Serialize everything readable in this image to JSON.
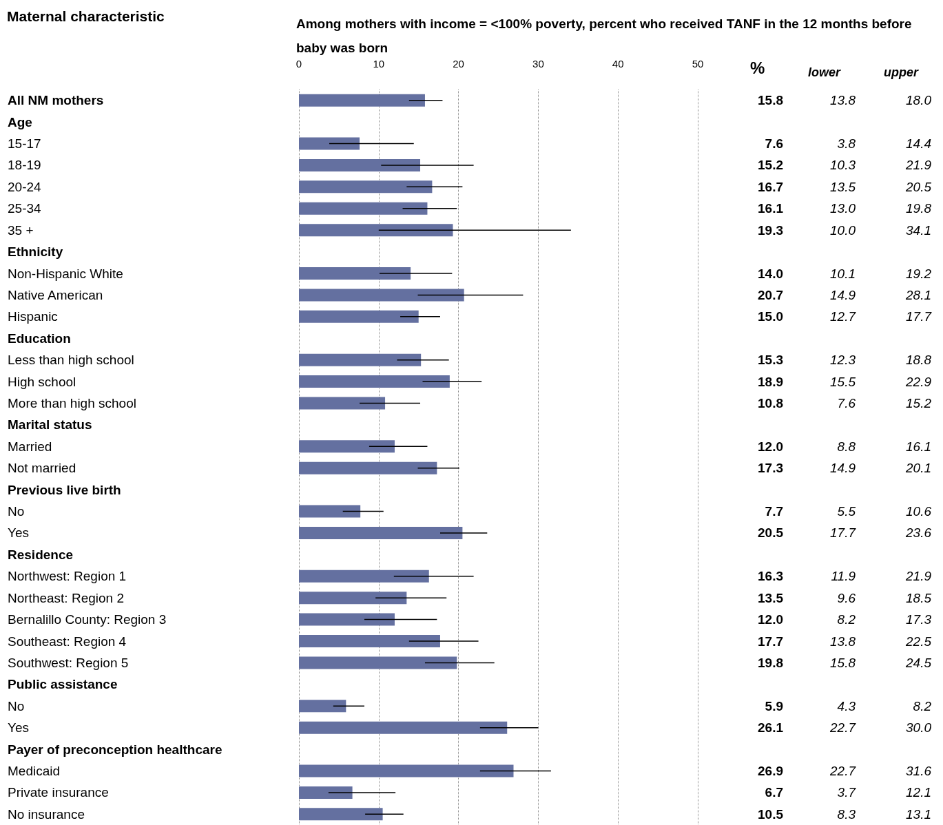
{
  "chart_data": {
    "type": "bar",
    "orientation": "horizontal",
    "title": "Among mothers with income = <100% poverty, percent who received TANF in the 12 months before baby was born",
    "annotations": [
      "Maternal characteristic",
      "%",
      "lower",
      "upper",
      "13.8",
      "18.0",
      "3.8",
      "14.4",
      "10.3",
      "21.9",
      "13.5",
      "20.5",
      "13.0",
      "19.8",
      "10.0",
      "34.1",
      "10.1",
      "19.2",
      "14.9",
      "28.1",
      "12.7",
      "17.7",
      "12.3",
      "18.8",
      "15.5",
      "22.9",
      "7.6",
      "15.2",
      "8.8",
      "16.1",
      "14.9",
      "20.1",
      "5.5",
      "10.6",
      "17.7",
      "23.6",
      "11.9",
      "21.9",
      "9.6",
      "18.5",
      "8.2",
      "17.3",
      "13.8",
      "22.5",
      "15.8",
      "24.5",
      "4.3",
      "8.2",
      "22.7",
      "30.0",
      "22.7",
      "31.6",
      "3.7",
      "12.1",
      "8.3",
      "13.1"
    ],
    "categories": [
      "All NM mothers",
      "Age",
      "15-17",
      "18-19",
      "20-24",
      "25-34",
      "35 +",
      "Ethnicity",
      "Non-Hispanic White",
      "Native American",
      "Hispanic",
      "Education",
      "Less than high school",
      "High school",
      "More than high school",
      "Marital status",
      "Married",
      "Not married",
      "Previous live birth",
      "No",
      "Yes",
      "Residence",
      "Northwest: Region 1",
      "Northeast: Region 2",
      "Bernalillo County: Region 3",
      "Southeast: Region 4",
      "Southwest: Region 5",
      "Public assistance",
      "No",
      "Yes",
      "Payer of preconception healthcare",
      "Medicaid",
      "Private insurance",
      "No insurance"
    ],
    "values": [
      15.8,
      null,
      7.6,
      15.2,
      16.7,
      16.1,
      19.3,
      null,
      14.0,
      20.7,
      15.0,
      null,
      15.3,
      18.9,
      10.8,
      null,
      12.0,
      17.3,
      null,
      7.7,
      20.5,
      null,
      16.3,
      13.5,
      12.0,
      17.7,
      19.8,
      null,
      5.9,
      26.1,
      null,
      26.9,
      6.7,
      10.5
    ],
    "value_labels": [
      "15.8",
      null,
      "7.6",
      "15.2",
      "16.7",
      "16.1",
      "19.3",
      null,
      "14.0",
      "20.7",
      "15.0",
      null,
      "15.3",
      "18.9",
      "10.8",
      null,
      "12.0",
      "17.3",
      null,
      "7.7",
      "20.5",
      null,
      "16.3",
      "13.5",
      "12.0",
      "17.7",
      "19.8",
      null,
      "5.9",
      "26.1",
      null,
      "26.9",
      "6.7",
      "10.5"
    ],
    "errors": [
      [
        13.8,
        18.0
      ],
      null,
      [
        3.8,
        14.4
      ],
      [
        10.3,
        21.9
      ],
      [
        13.5,
        20.5
      ],
      [
        13.0,
        19.8
      ],
      [
        10.0,
        34.1
      ],
      null,
      [
        10.1,
        19.2
      ],
      [
        14.9,
        28.1
      ],
      [
        12.7,
        17.7
      ],
      null,
      [
        12.3,
        18.8
      ],
      [
        15.5,
        22.9
      ],
      [
        7.6,
        15.2
      ],
      null,
      [
        8.8,
        16.1
      ],
      [
        14.9,
        20.1
      ],
      null,
      [
        5.5,
        10.6
      ],
      [
        17.7,
        23.6
      ],
      null,
      [
        11.9,
        21.9
      ],
      [
        9.6,
        18.5
      ],
      [
        8.2,
        17.3
      ],
      [
        13.8,
        22.5
      ],
      [
        15.8,
        24.5
      ],
      null,
      [
        4.3,
        8.2
      ],
      [
        22.7,
        30.0
      ],
      null,
      [
        22.7,
        31.6
      ],
      [
        3.7,
        12.1
      ],
      [
        8.3,
        13.1
      ]
    ],
    "color": "#6470a0",
    "xlim": [
      0,
      50
    ],
    "xticks": [
      0,
      10,
      20,
      30,
      40,
      50
    ],
    "grid": "x"
  }
}
